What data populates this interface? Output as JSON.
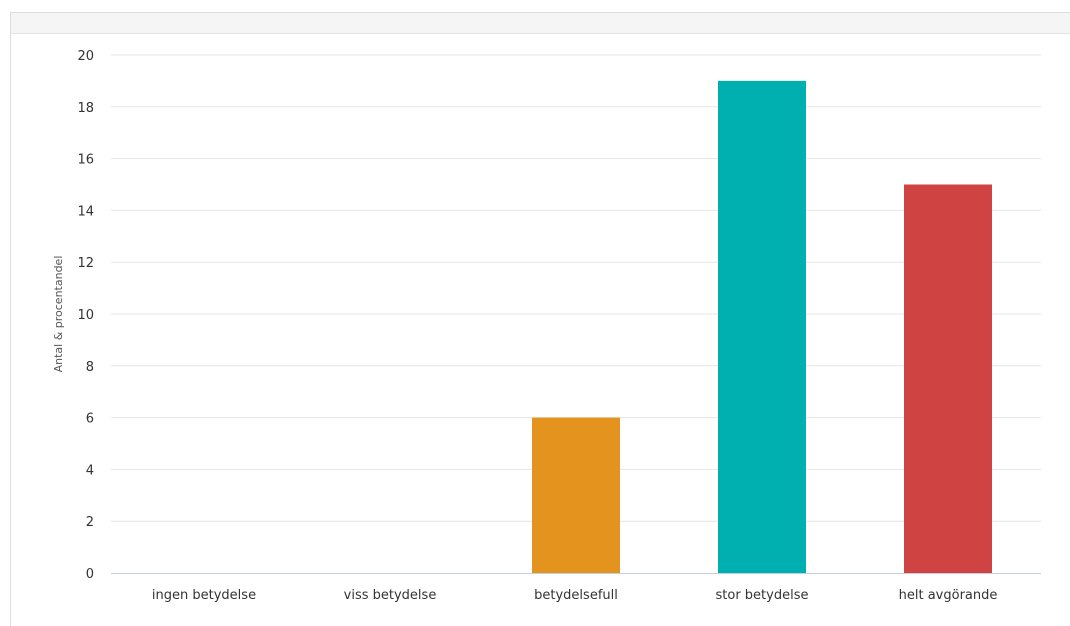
{
  "chart_data": {
    "type": "bar",
    "categories": [
      "ingen betydelse",
      "viss betydelse",
      "betydelsefull",
      "stor betydelse",
      "helt avgörande"
    ],
    "values": [
      0,
      0,
      6,
      19,
      15
    ],
    "colors": [
      "#2f7ed8",
      "#7cb5ec",
      "#e5931f",
      "#00b0b0",
      "#d04343"
    ],
    "title": "",
    "xlabel": "",
    "ylabel": "Antal & procentandel",
    "ylim": [
      0,
      20
    ],
    "yticks": [
      0,
      2,
      4,
      6,
      8,
      10,
      12,
      14,
      16,
      18,
      20
    ],
    "grid": true,
    "legend": "none"
  }
}
